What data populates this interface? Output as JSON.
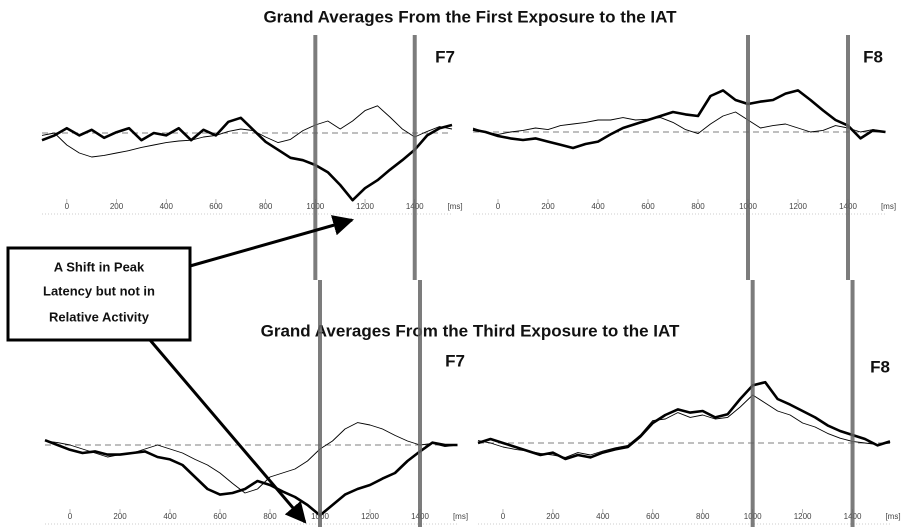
{
  "chart_data": [
    {
      "type": "line",
      "title": "Grand Averages From the First Exposure to the IAT",
      "label": "F7",
      "xlabel": "[ms]",
      "x": [
        -100,
        -50,
        0,
        50,
        100,
        150,
        200,
        250,
        300,
        350,
        400,
        450,
        500,
        550,
        600,
        650,
        700,
        750,
        800,
        850,
        900,
        950,
        1000,
        1050,
        1100,
        1150,
        1200,
        1250,
        1300,
        1350,
        1400,
        1450,
        1500,
        1550
      ],
      "xlim": [
        -100,
        1550
      ],
      "xticks": [
        0,
        200,
        400,
        600,
        800,
        1000,
        1200,
        1400
      ],
      "ylim": [
        -10,
        10
      ],
      "vlines": [
        1000,
        1400
      ],
      "series": [
        {
          "color": "#000000",
          "width": 2.6,
          "values": [
            -0.9,
            -0.3,
            0.6,
            -0.3,
            0.4,
            -0.6,
            0.1,
            0.6,
            -0.9,
            0,
            -0.3,
            0.6,
            -0.9,
            0.4,
            -0.3,
            1.4,
            1.9,
            0.4,
            -1.1,
            -2.1,
            -3.1,
            -3.4,
            -4,
            -4.9,
            -6.5,
            -8.4,
            -6.9,
            -5.9,
            -4.6,
            -3.4,
            -2.1,
            -0.3,
            0.6,
            1.0
          ]
        },
        {
          "color": "#000000",
          "width": 0.9,
          "values": [
            -0.3,
            0,
            -1.5,
            -2.5,
            -3,
            -2.8,
            -2.5,
            -2.2,
            -1.8,
            -1.5,
            -1.2,
            -1,
            -0.9,
            -0.5,
            -0.3,
            0.2,
            0.5,
            0.3,
            -0.5,
            -1.2,
            -0.8,
            0.3,
            1,
            1.5,
            0.5,
            1.5,
            2.8,
            3.4,
            2,
            0.5,
            -0.5,
            0.2,
            0.8,
            0.5
          ]
        }
      ]
    },
    {
      "type": "line",
      "label": "F8",
      "xlabel": "[ms]",
      "x": [
        -100,
        -50,
        0,
        50,
        100,
        150,
        200,
        250,
        300,
        350,
        400,
        450,
        500,
        550,
        600,
        650,
        700,
        750,
        800,
        850,
        900,
        950,
        1000,
        1050,
        1100,
        1150,
        1200,
        1250,
        1300,
        1350,
        1400,
        1450,
        1500,
        1550
      ],
      "xlim": [
        -100,
        1550
      ],
      "xticks": [
        0,
        200,
        400,
        600,
        800,
        1000,
        1200,
        1400
      ],
      "ylim": [
        -10,
        10
      ],
      "vlines": [
        1000,
        1400
      ],
      "series": [
        {
          "color": "#000000",
          "width": 2.6,
          "values": [
            0.3,
            0,
            -0.5,
            -0.8,
            -1,
            -0.8,
            -1.2,
            -1.6,
            -2,
            -1.5,
            -1.2,
            -0.3,
            0.5,
            1,
            1.5,
            2,
            2.5,
            2.2,
            2,
            4.5,
            5.2,
            4,
            3.5,
            3.8,
            4,
            4.8,
            5.2,
            4,
            2.7,
            1.5,
            0.8,
            -0.8,
            0.2,
            0
          ]
        },
        {
          "color": "#000000",
          "width": 0.9,
          "values": [
            0.5,
            0,
            -0.3,
            0,
            0.2,
            0.5,
            0.3,
            0.8,
            1,
            1.2,
            1.5,
            1.5,
            1.8,
            1.5,
            1.6,
            1.8,
            1.2,
            0.3,
            -0.2,
            1,
            2,
            2.5,
            1.5,
            0.5,
            0.8,
            1,
            0.5,
            0,
            0.2,
            0.8,
            0.5,
            0,
            0.3,
            0
          ]
        }
      ]
    },
    {
      "type": "line",
      "title": "Grand Averages From the Third Exposure to the IAT",
      "label": "F7",
      "xlabel": "[ms]",
      "x": [
        -100,
        -50,
        0,
        50,
        100,
        150,
        200,
        250,
        300,
        350,
        400,
        450,
        500,
        550,
        600,
        650,
        700,
        750,
        800,
        850,
        900,
        950,
        1000,
        1050,
        1100,
        1150,
        1200,
        1250,
        1300,
        1350,
        1400,
        1450,
        1500,
        1550
      ],
      "xlim": [
        -100,
        1550
      ],
      "xticks": [
        0,
        200,
        400,
        600,
        800,
        1000,
        1200,
        1400
      ],
      "ylim": [
        -10,
        10
      ],
      "vlines": [
        1000,
        1400
      ],
      "series": [
        {
          "color": "#000000",
          "width": 2.6,
          "values": [
            0.6,
            0,
            -0.6,
            -1,
            -0.8,
            -1.2,
            -1.2,
            -1,
            -0.8,
            -1.5,
            -1.8,
            -2.5,
            -4,
            -5.5,
            -6.2,
            -6,
            -5.5,
            -4.5,
            -5,
            -5.8,
            -6.5,
            -7.5,
            -8.8,
            -7.5,
            -6.2,
            -5.5,
            -5,
            -4.2,
            -3.5,
            -2,
            -0.8,
            0.3,
            0,
            0
          ]
        },
        {
          "color": "#000000",
          "width": 0.9,
          "values": [
            0.5,
            0.3,
            0,
            -0.5,
            -1,
            -1.5,
            -1.2,
            -1,
            -0.5,
            0,
            -0.5,
            -1,
            -1.8,
            -2.5,
            -3.5,
            -4.8,
            -6,
            -5.5,
            -4,
            -3.5,
            -3,
            -2,
            -0.5,
            0.5,
            2,
            2.8,
            2.5,
            2,
            1.2,
            0.5,
            0,
            0.2,
            -0.2,
            0
          ]
        }
      ]
    },
    {
      "type": "line",
      "label": "F8",
      "xlabel": "[ms]",
      "x": [
        -100,
        -50,
        0,
        50,
        100,
        150,
        200,
        250,
        300,
        350,
        400,
        450,
        500,
        550,
        600,
        650,
        700,
        750,
        800,
        850,
        900,
        950,
        1000,
        1050,
        1100,
        1150,
        1200,
        1250,
        1300,
        1350,
        1400,
        1450,
        1500,
        1550
      ],
      "xlim": [
        -100,
        1550
      ],
      "xticks": [
        0,
        200,
        400,
        600,
        800,
        1000,
        1200,
        1400
      ],
      "ylim": [
        -10,
        10
      ],
      "vlines": [
        1000,
        1400
      ],
      "series": [
        {
          "color": "#000000",
          "width": 2.6,
          "values": [
            0,
            0.5,
            0,
            -0.5,
            -1,
            -1.5,
            -1.2,
            -2,
            -1.5,
            -1.8,
            -1.2,
            -0.8,
            -0.5,
            0.8,
            2.5,
            3.5,
            4.2,
            3.8,
            4,
            3.2,
            3.6,
            5.5,
            7.2,
            7.6,
            5.5,
            4.8,
            4,
            3.2,
            2.2,
            1.5,
            1,
            0.5,
            -0.3,
            0.2
          ]
        },
        {
          "color": "#000000",
          "width": 0.9,
          "values": [
            0.3,
            0,
            -0.5,
            -0.8,
            -1,
            -1.3,
            -1.5,
            -1.8,
            -1.2,
            -1.5,
            -1,
            -0.6,
            -0.3,
            1,
            2.8,
            3,
            3.8,
            3.2,
            3.5,
            3,
            3.2,
            4.5,
            6,
            5,
            4,
            3.5,
            2.5,
            2,
            1.2,
            0.6,
            0.2,
            0,
            -0.2,
            0
          ]
        }
      ]
    }
  ],
  "annotation": {
    "lines": [
      "A Shift in Peak",
      "Latency but not in",
      "Relative Activity"
    ]
  }
}
